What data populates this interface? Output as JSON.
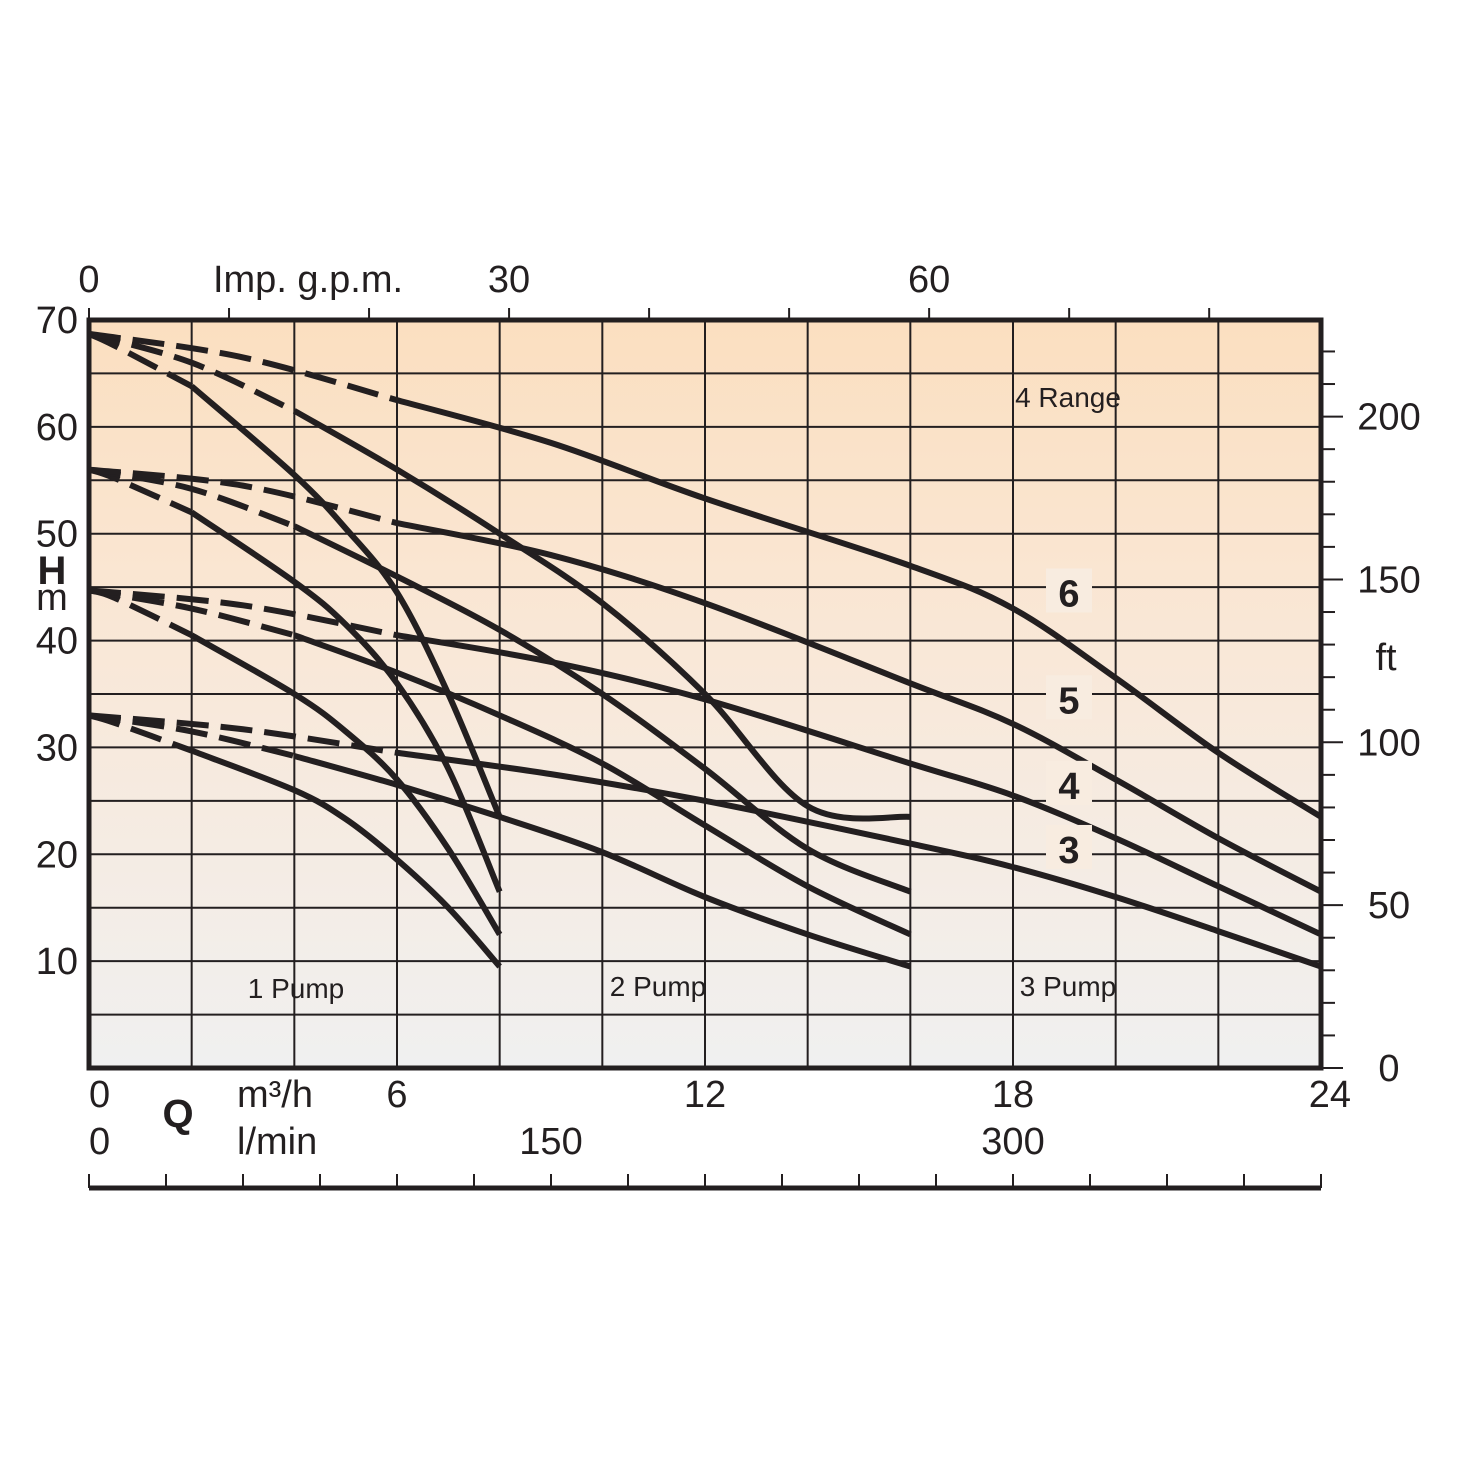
{
  "chart_data": {
    "type": "line",
    "title": "",
    "region_label": "4 Range",
    "pump_zone_labels": [
      "1 Pump",
      "2 Pump",
      "3 Pump"
    ],
    "axes": {
      "q_symbol": "Q",
      "h_symbol": "H",
      "left": {
        "unit": "m",
        "range": [
          0,
          70
        ],
        "tick_labels": [
          "10",
          "20",
          "30",
          "40",
          "50",
          "60",
          "70"
        ]
      },
      "right": {
        "unit": "ft",
        "tick_labels": [
          "0",
          "50",
          "100",
          "150",
          "200"
        ]
      },
      "bottom_m3h": {
        "unit": "m³/h",
        "range": [
          0,
          24
        ],
        "tick_labels": [
          "0",
          "6",
          "12",
          "18",
          "24"
        ]
      },
      "bottom_lmin": {
        "unit": "l/min",
        "tick_labels": [
          "0",
          "150",
          "300"
        ]
      },
      "top_gpm": {
        "unit": "Imp. g.p.m.",
        "tick_labels": [
          "0",
          "30",
          "60"
        ]
      }
    },
    "x_unit": "m³/h",
    "y_unit": "m",
    "grid": true,
    "series": [
      {
        "name": "6",
        "pump1": [
          [
            0,
            68.7
          ],
          [
            0.5,
            67.6
          ],
          [
            2,
            63.8
          ],
          [
            4,
            55.5
          ],
          [
            5,
            50.5
          ],
          [
            6,
            44.5
          ],
          [
            7,
            35
          ],
          [
            8,
            23.5
          ]
        ],
        "pump2": [
          [
            0,
            68.7
          ],
          [
            2,
            66
          ],
          [
            4,
            61.5
          ],
          [
            6,
            56
          ],
          [
            8,
            50
          ],
          [
            10,
            43.5
          ],
          [
            12,
            35
          ],
          [
            14,
            24.5
          ],
          [
            16,
            23.5
          ]
        ],
        "pump3": [
          [
            0,
            68.7
          ],
          [
            3,
            66.5
          ],
          [
            6,
            62.5
          ],
          [
            9,
            58.5
          ],
          [
            12,
            53.3
          ],
          [
            16,
            47
          ],
          [
            18,
            43
          ],
          [
            20,
            36.5
          ],
          [
            22,
            29.5
          ],
          [
            24,
            23.5
          ]
        ]
      },
      {
        "name": "5",
        "pump1": [
          [
            0,
            56
          ],
          [
            0.5,
            55.2
          ],
          [
            2,
            52
          ],
          [
            4,
            45.5
          ],
          [
            5,
            41.5
          ],
          [
            6,
            36
          ],
          [
            7,
            28
          ],
          [
            8,
            16.5
          ]
        ],
        "pump2": [
          [
            0,
            56
          ],
          [
            2,
            54.2
          ],
          [
            4,
            50.7
          ],
          [
            6,
            46
          ],
          [
            8,
            41
          ],
          [
            10,
            35
          ],
          [
            12,
            28
          ],
          [
            14,
            20.5
          ],
          [
            16,
            16.5
          ]
        ],
        "pump3": [
          [
            0,
            56
          ],
          [
            3,
            54.5
          ],
          [
            6,
            51
          ],
          [
            9,
            48
          ],
          [
            12,
            43.5
          ],
          [
            16,
            36
          ],
          [
            18,
            32.2
          ],
          [
            20,
            27
          ],
          [
            22,
            21.5
          ],
          [
            24,
            16.5
          ]
        ]
      },
      {
        "name": "4",
        "pump1": [
          [
            0,
            44.7
          ],
          [
            0.5,
            44
          ],
          [
            2,
            40.5
          ],
          [
            4,
            35
          ],
          [
            5,
            31.5
          ],
          [
            6,
            27
          ],
          [
            7,
            20.5
          ],
          [
            8,
            12.5
          ]
        ],
        "pump2": [
          [
            0,
            44.7
          ],
          [
            2,
            43
          ],
          [
            4,
            40.5
          ],
          [
            6,
            37
          ],
          [
            8,
            33
          ],
          [
            10,
            28.5
          ],
          [
            12,
            22.7
          ],
          [
            14,
            17
          ],
          [
            16,
            12.5
          ]
        ],
        "pump3": [
          [
            0,
            44.7
          ],
          [
            3,
            43.3
          ],
          [
            6,
            40.5
          ],
          [
            9,
            38
          ],
          [
            12,
            34.5
          ],
          [
            16,
            28.5
          ],
          [
            18,
            25.5
          ],
          [
            20,
            21.5
          ],
          [
            22,
            17
          ],
          [
            24,
            12.5
          ]
        ]
      },
      {
        "name": "3",
        "pump1": [
          [
            0,
            33
          ],
          [
            0.5,
            32.3
          ],
          [
            2,
            29.7
          ],
          [
            4,
            26
          ],
          [
            5,
            23.3
          ],
          [
            6,
            19.5
          ],
          [
            7,
            15
          ],
          [
            8,
            9.5
          ]
        ],
        "pump2": [
          [
            0,
            33
          ],
          [
            2,
            31.5
          ],
          [
            4,
            29.2
          ],
          [
            6,
            26.5
          ],
          [
            8,
            23.5
          ],
          [
            10,
            20.2
          ],
          [
            12,
            16
          ],
          [
            14,
            12.5
          ],
          [
            16,
            9.5
          ]
        ],
        "pump3": [
          [
            0,
            33
          ],
          [
            3,
            31.7
          ],
          [
            6,
            29.5
          ],
          [
            9,
            27.5
          ],
          [
            12,
            25
          ],
          [
            16,
            21
          ],
          [
            18,
            18.8
          ],
          [
            20,
            16
          ],
          [
            22,
            12.8
          ],
          [
            24,
            9.5
          ]
        ]
      }
    ]
  }
}
